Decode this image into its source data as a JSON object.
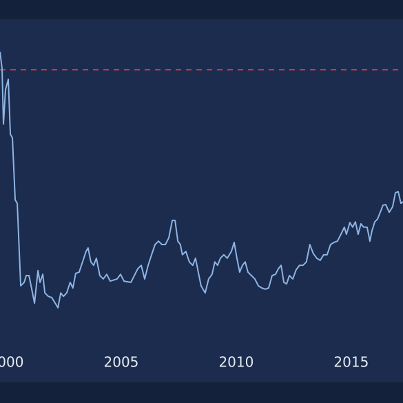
{
  "chart_data": {
    "type": "line",
    "x": [
      1999.73,
      1999.82,
      1999.88,
      1999.97,
      2000.09,
      2000.18,
      2000.27,
      2000.39,
      2000.48,
      2000.63,
      2000.78,
      2000.87,
      2000.99,
      2001.11,
      2001.23,
      2001.38,
      2001.47,
      2001.59,
      2001.68,
      2001.83,
      2001.98,
      2002.13,
      2002.25,
      2002.37,
      2002.49,
      2002.63,
      2002.78,
      2002.9,
      2003.02,
      2003.17,
      2003.32,
      2003.47,
      2003.56,
      2003.68,
      2003.8,
      2003.92,
      2004.07,
      2004.22,
      2004.37,
      2004.52,
      2004.82,
      2004.97,
      2005.12,
      2005.42,
      2005.72,
      2005.87,
      2006.02,
      2006.17,
      2006.32,
      2006.47,
      2006.62,
      2006.77,
      2006.92,
      2007.07,
      2007.22,
      2007.34,
      2007.46,
      2007.57,
      2007.66,
      2007.81,
      2007.96,
      2008.11,
      2008.23,
      2008.35,
      2008.47,
      2008.65,
      2008.8,
      2008.95,
      2009.07,
      2009.19,
      2009.31,
      2009.46,
      2009.61,
      2009.79,
      2009.91,
      2010.03,
      2010.15,
      2010.27,
      2010.39,
      2010.51,
      2010.66,
      2010.81,
      2010.96,
      2011.11,
      2011.26,
      2011.41,
      2011.56,
      2011.71,
      2011.83,
      2011.95,
      2012.07,
      2012.19,
      2012.31,
      2012.46,
      2012.6,
      2012.75,
      2012.9,
      2013.05,
      2013.2,
      2013.35,
      2013.5,
      2013.65,
      2013.8,
      2013.95,
      2014.1,
      2014.25,
      2014.4,
      2014.55,
      2014.7,
      2014.79,
      2014.94,
      2015.06,
      2015.18,
      2015.3,
      2015.42,
      2015.54,
      2015.69,
      2015.81,
      2015.9,
      2016.02,
      2016.14,
      2016.26,
      2016.38,
      2016.5,
      2016.65,
      2016.8,
      2016.92,
      2017.04,
      2017.16,
      2017.25
    ],
    "series": [
      {
        "color": "#8fb4e3",
        "values": [
          92.2,
          86.7,
          68.9,
          80.0,
          83.3,
          65.6,
          64.4,
          44.4,
          43.3,
          16.7,
          17.8,
          20.0,
          20.0,
          15.6,
          11.1,
          21.6,
          17.8,
          20.4,
          14.4,
          13.3,
          12.9,
          11.1,
          9.6,
          14.4,
          13.3,
          14.4,
          17.8,
          16.0,
          20.7,
          21.1,
          24.4,
          27.8,
          28.9,
          24.4,
          23.3,
          25.6,
          20.0,
          18.9,
          20.4,
          18.2,
          18.9,
          20.4,
          18.2,
          17.8,
          22.2,
          23.3,
          18.9,
          23.3,
          26.7,
          30.0,
          31.1,
          30.0,
          30.0,
          32.2,
          37.8,
          37.8,
          31.1,
          30.0,
          26.7,
          27.8,
          24.4,
          23.3,
          25.6,
          21.1,
          16.7,
          14.4,
          18.9,
          20.4,
          24.4,
          23.3,
          25.6,
          26.7,
          25.6,
          27.8,
          30.7,
          25.6,
          21.1,
          23.3,
          24.4,
          21.1,
          20.0,
          18.9,
          16.7,
          16.0,
          15.6,
          16.0,
          20.0,
          20.4,
          22.2,
          23.3,
          17.8,
          17.3,
          20.0,
          18.9,
          21.8,
          23.3,
          23.3,
          24.4,
          30.0,
          27.1,
          25.6,
          24.9,
          26.7,
          26.7,
          30.0,
          30.7,
          31.1,
          33.3,
          35.6,
          33.3,
          37.1,
          35.6,
          37.3,
          33.3,
          36.7,
          35.6,
          35.6,
          31.1,
          34.4,
          37.3,
          38.2,
          40.4,
          42.7,
          42.9,
          40.4,
          42.2,
          46.7,
          47.1,
          43.3,
          43.8
        ]
      }
    ],
    "xlim": [
      1999.73,
      2017.25
    ],
    "xticks": [
      2000,
      2005,
      2010,
      2015
    ],
    "ylim": [
      0,
      100
    ],
    "reference_line": {
      "value": 86.4,
      "color": "#e03a3a",
      "style": "dashed"
    }
  }
}
